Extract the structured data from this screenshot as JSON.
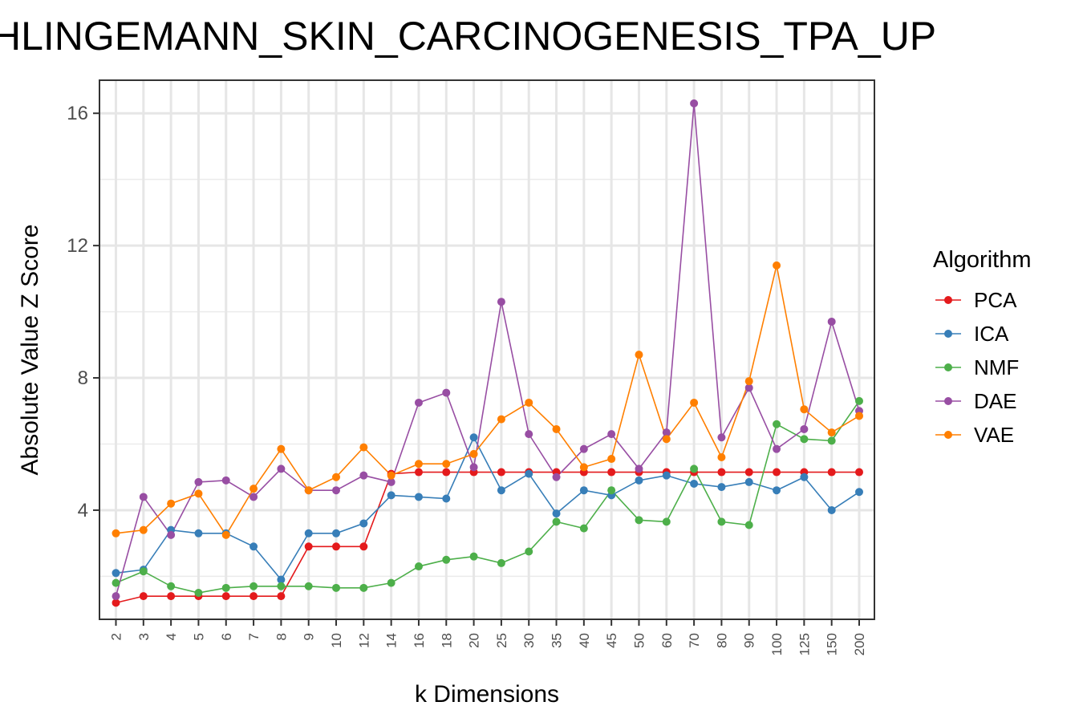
{
  "chart_data": {
    "type": "line",
    "title": "HLINGEMANN_SKIN_CARCINOGENESIS_TPA_UP",
    "xlabel": "k Dimensions",
    "ylabel": "Absolute Value Z Score",
    "categories": [
      "2",
      "3",
      "4",
      "5",
      "6",
      "7",
      "8",
      "9",
      "10",
      "12",
      "14",
      "16",
      "18",
      "20",
      "25",
      "30",
      "35",
      "40",
      "45",
      "50",
      "60",
      "70",
      "80",
      "90",
      "100",
      "125",
      "150",
      "200"
    ],
    "yticks": [
      "4",
      "8",
      "12",
      "16"
    ],
    "ylim": [
      0.7,
      17.0
    ],
    "grid": true,
    "legend": {
      "title": "Algorithm",
      "placement": "right"
    },
    "series": [
      {
        "name": "PCA",
        "color": "#e41a1c",
        "values": [
          1.2,
          1.4,
          1.4,
          1.4,
          1.4,
          1.4,
          1.4,
          2.9,
          2.9,
          2.9,
          5.1,
          5.15,
          5.15,
          5.15,
          5.15,
          5.15,
          5.15,
          5.15,
          5.15,
          5.15,
          5.15,
          5.15,
          5.15,
          5.15,
          5.15,
          5.15,
          5.15,
          5.15
        ]
      },
      {
        "name": "ICA",
        "color": "#377eb8",
        "values": [
          2.1,
          2.2,
          3.4,
          3.3,
          3.3,
          2.9,
          1.9,
          3.3,
          3.3,
          3.6,
          4.45,
          4.4,
          4.35,
          6.2,
          4.6,
          5.1,
          3.9,
          4.6,
          4.45,
          4.9,
          5.05,
          4.8,
          4.7,
          4.85,
          4.6,
          5.0,
          4.0,
          4.55
        ]
      },
      {
        "name": "NMF",
        "color": "#4daf4a",
        "values": [
          1.8,
          2.15,
          1.7,
          1.5,
          1.65,
          1.7,
          1.7,
          1.7,
          1.65,
          1.65,
          1.8,
          2.3,
          2.5,
          2.6,
          2.4,
          2.75,
          3.65,
          3.45,
          4.6,
          3.7,
          3.65,
          5.25,
          3.65,
          3.55,
          6.6,
          6.15,
          6.1,
          7.3
        ]
      },
      {
        "name": "DAE",
        "color": "#984ea3",
        "values": [
          1.4,
          4.4,
          3.25,
          4.85,
          4.9,
          4.4,
          5.25,
          4.6,
          4.6,
          5.05,
          4.85,
          7.25,
          7.55,
          5.3,
          10.3,
          6.3,
          5.0,
          5.85,
          6.3,
          5.25,
          6.35,
          16.3,
          6.2,
          7.7,
          5.85,
          6.45,
          9.7,
          7.0
        ]
      },
      {
        "name": "VAE",
        "color": "#ff7f00",
        "values": [
          3.3,
          3.4,
          4.2,
          4.5,
          3.25,
          4.65,
          5.85,
          4.6,
          5.0,
          5.9,
          5.05,
          5.4,
          5.4,
          5.7,
          6.75,
          7.25,
          6.45,
          5.3,
          5.55,
          8.7,
          6.15,
          7.25,
          5.6,
          7.9,
          11.4,
          7.05,
          6.35,
          6.85
        ]
      }
    ]
  }
}
